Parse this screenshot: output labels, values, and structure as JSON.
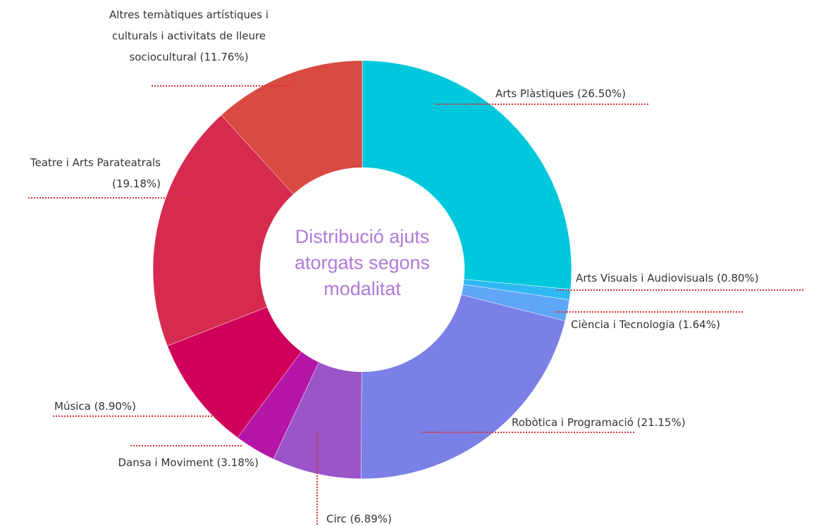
{
  "chart_data": {
    "type": "donut",
    "title": "Distribució ajuts atorgats segons modalitat",
    "categories": [
      "Arts Plàstiques",
      "Arts Visuals i Audiovisuals",
      "Ciència i Tecnologia",
      "Robòtica i Programació",
      "Circ",
      "Dansa i Moviment",
      "Música",
      "Teatre i Arts Parateatrals",
      "Altres temàtiques artístiques i culturals i activitats de lleure sociocultural"
    ],
    "values": [
      26.5,
      0.8,
      1.64,
      21.15,
      6.89,
      3.18,
      8.9,
      19.18,
      11.76
    ],
    "value_labels": [
      "(26.50%)",
      "(0.80%)",
      "(1.64%)",
      "(21.15%)",
      "(6.89%)",
      "(3.18%)",
      "(8.90%)",
      "(19.18%)",
      "(11.76%)"
    ],
    "colors": [
      "#00c8dc",
      "#2db8f2",
      "#5fa6f6",
      "#7b80e6",
      "#9a55c9",
      "#b515a6",
      "#d0005a",
      "#d62b4f",
      "#d84a42"
    ]
  }
}
